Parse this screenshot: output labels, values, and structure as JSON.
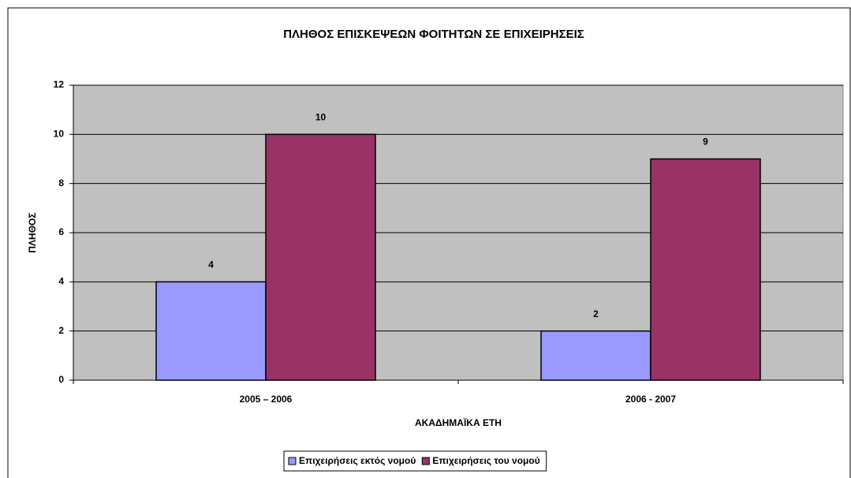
{
  "chart_data": {
    "type": "bar",
    "title": "ΠΛΗΘΟΣ ΕΠΙΣΚΕΨΕΩΝ ΦΟΙΤΗΤΩΝ ΣΕ ΕΠΙΧΕΙΡΗΣΕΙΣ",
    "x_label": "ΑΚΑΔΗΜΑΪΚΑ ΕΤΗ",
    "y_label": "ΠΛΗΘΟΣ",
    "categories": [
      "2005 – 2006",
      "2006 - 2007"
    ],
    "series": [
      {
        "name": "Επιχειρήσεις εκτός νομού",
        "color": "#9999ff",
        "values": [
          4,
          2
        ]
      },
      {
        "name": "Επιχειρήσεις του νομού",
        "color": "#993366",
        "values": [
          10,
          9
        ]
      }
    ],
    "ylim": [
      0,
      12
    ],
    "yticks": [
      0,
      2,
      4,
      6,
      8,
      10,
      12
    ],
    "grid": true,
    "plot_background": "#c0c0c0",
    "legend": "bottom"
  }
}
